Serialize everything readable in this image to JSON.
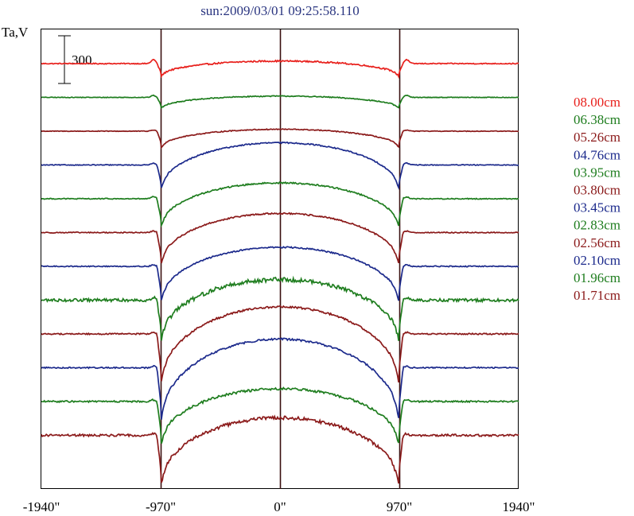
{
  "chart_data": {
    "type": "line",
    "title": "sun:2009/03/01 09:25:58.110",
    "ylabel": "Ta,V",
    "scale_bar_label": "300",
    "scale_bar_value": 300,
    "xlim": [
      -1940,
      1940
    ],
    "x_ticks": [
      {
        "value": -1940,
        "label": "-1940\""
      },
      {
        "value": -970,
        "label": "-970\""
      },
      {
        "value": 0,
        "label": "0\""
      },
      {
        "value": 970,
        "label": "970\""
      },
      {
        "value": 1940,
        "label": "1940\""
      }
    ],
    "vertical_lines": [
      -970,
      0,
      970
    ],
    "legend_position": "right",
    "series": [
      {
        "name": "08.00cm",
        "color": "#e8201c",
        "depth": 0.35,
        "rise": 0.08,
        "noise": 0.3,
        "bump": 1.0
      },
      {
        "name": "06.38cm",
        "color": "#1e7d1e",
        "depth": 0.3,
        "rise": 0.04,
        "noise": 0.2,
        "bump": 0.5
      },
      {
        "name": "05.26cm",
        "color": "#8b1a1a",
        "depth": 0.45,
        "rise": 0.06,
        "noise": 0.2,
        "bump": 0.3
      },
      {
        "name": "04.76cm",
        "color": "#1c2a8c",
        "depth": 0.7,
        "rise": 0.7,
        "noise": 0.25,
        "bump": 0.5
      },
      {
        "name": "03.95cm",
        "color": "#1e7d1e",
        "depth": 0.8,
        "rise": 0.5,
        "noise": 0.3,
        "bump": 0.5
      },
      {
        "name": "03.80cm",
        "color": "#8b1a1a",
        "depth": 0.9,
        "rise": 0.6,
        "noise": 0.3,
        "bump": 0.4
      },
      {
        "name": "03.45cm",
        "color": "#1c2a8c",
        "depth": 1.0,
        "rise": 0.6,
        "noise": 0.3,
        "bump": 0.4
      },
      {
        "name": "02.83cm",
        "color": "#1e7d1e",
        "depth": 1.15,
        "rise": 0.65,
        "noise": 0.9,
        "bump": 0.6
      },
      {
        "name": "02.56cm",
        "color": "#8b1a1a",
        "depth": 1.4,
        "rise": 0.85,
        "noise": 0.4,
        "bump": 0.4
      },
      {
        "name": "02.10cm",
        "color": "#1c2a8c",
        "depth": 1.5,
        "rise": 0.9,
        "noise": 0.4,
        "bump": 0.4
      },
      {
        "name": "01.96cm",
        "color": "#1e7d1e",
        "depth": 1.2,
        "rise": 0.4,
        "noise": 0.5,
        "bump": 0.4
      },
      {
        "name": "01.71cm",
        "color": "#8b1a1a",
        "depth": 1.4,
        "rise": 0.55,
        "noise": 0.7,
        "bump": 0.4
      }
    ]
  }
}
